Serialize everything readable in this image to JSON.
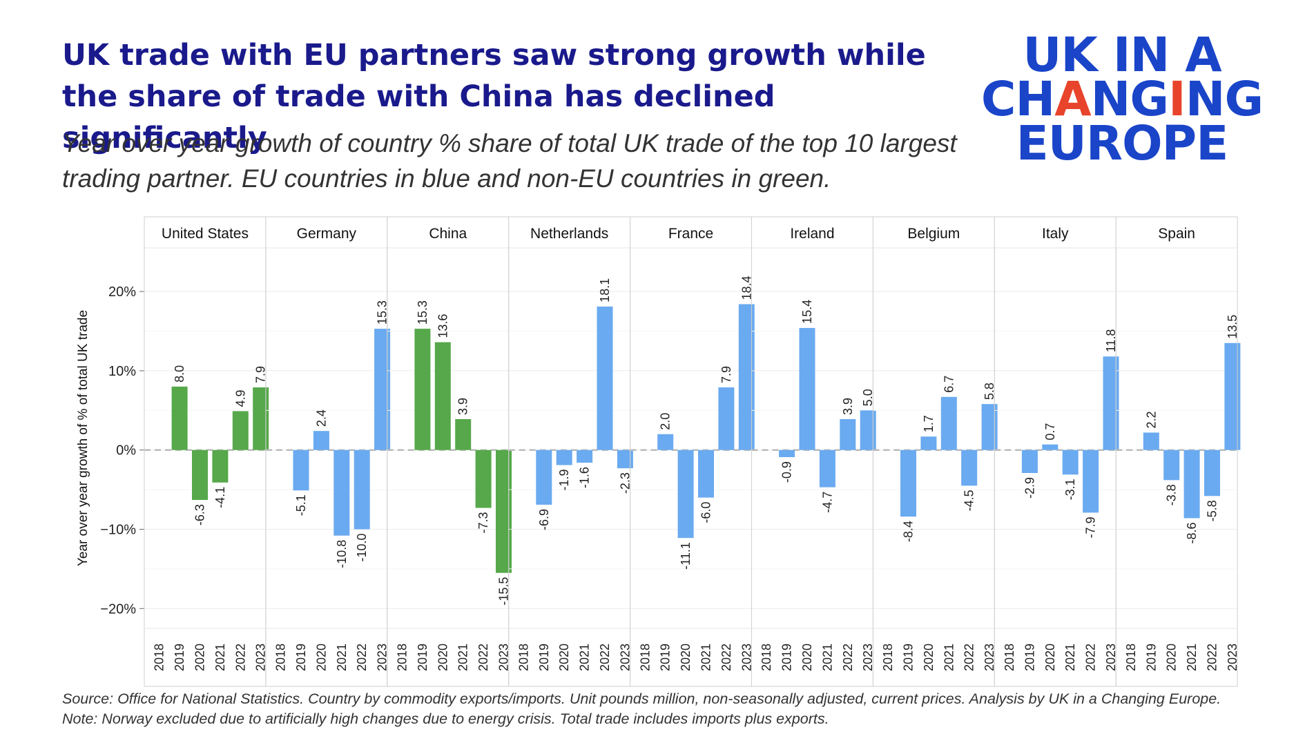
{
  "header": {
    "title": "UK trade with EU partners saw strong growth while the share of trade with China has declined significantly",
    "subtitle": "Year over year growth of country % share of total UK trade of the top 10 largest trading partner. EU countries in blue and non-EU countries in green."
  },
  "logo": {
    "line1": "UK IN A",
    "line2_a": "CH",
    "line2_b": "A",
    "line2_c": "NG",
    "line2_d": "I",
    "line2_e": "NG",
    "line3": "EUROPE",
    "colors": {
      "main": "#1a45c9",
      "accent": "#e8442c"
    }
  },
  "footer": {
    "source": "Source: Office for National Statistics. Country by commodity exports/imports. Unit pounds million, non-seasonally adjusted, current prices.  Analysis by UK in a Changing Europe.",
    "note": "Note: Norway excluded due to artificially high changes due to energy crisis.  Total trade includes imports plus exports."
  },
  "chart_data": {
    "type": "bar",
    "layout": "faceted",
    "ylabel": "Year over year growth of % of total UK trade",
    "xlabel": "",
    "ylim": [
      -22.5,
      25.5
    ],
    "yticks": [
      20,
      10,
      0,
      -10,
      -20
    ],
    "ytick_labels": [
      "20%",
      "10%",
      "0%",
      "−10%",
      "−20%"
    ],
    "categories": [
      "2018",
      "2019",
      "2020",
      "2021",
      "2022",
      "2023"
    ],
    "colors": {
      "eu": "#6aaaf0",
      "non_eu": "#56a84a",
      "zero_line": "#bbbbbb",
      "grid": "#ebebeb",
      "panel_border": "#cfcfcf"
    },
    "series": [
      {
        "name": "United States",
        "group": "non-EU",
        "values": [
          null,
          8.0,
          -6.3,
          -4.1,
          4.9,
          7.9
        ],
        "labels": [
          "",
          "8.0",
          "-6.3",
          "-4.1",
          "4.9",
          "7.9"
        ]
      },
      {
        "name": "Germany",
        "group": "EU",
        "values": [
          null,
          -5.1,
          2.4,
          -10.8,
          -10.0,
          15.3
        ],
        "labels": [
          "",
          "-5.1",
          "2.4",
          "-10.8",
          "-10.0",
          "15.3"
        ]
      },
      {
        "name": "China",
        "group": "non-EU",
        "values": [
          null,
          15.3,
          13.6,
          3.9,
          -7.3,
          -15.5
        ],
        "labels": [
          "",
          "15.3",
          "13.6",
          "3.9",
          "-7.3",
          "-15.5"
        ]
      },
      {
        "name": "Netherlands",
        "group": "EU",
        "values": [
          null,
          -6.9,
          -1.9,
          -1.6,
          18.1,
          -2.3
        ],
        "labels": [
          "",
          "-6.9",
          "-1.9",
          "-1.6",
          "18.1",
          "-2.3"
        ]
      },
      {
        "name": "France",
        "group": "EU",
        "values": [
          null,
          2.0,
          -11.1,
          -6.0,
          7.9,
          18.4
        ],
        "labels": [
          "",
          "2.0",
          "-11.1",
          "-6.0",
          "7.9",
          "18.4"
        ]
      },
      {
        "name": "Ireland",
        "group": "EU",
        "values": [
          null,
          -0.9,
          15.4,
          -4.7,
          3.9,
          5.0
        ],
        "labels": [
          "",
          "-0.9",
          "15.4",
          "-4.7",
          "3.9",
          "5.0"
        ]
      },
      {
        "name": "Belgium",
        "group": "EU",
        "values": [
          null,
          -8.4,
          1.7,
          6.7,
          -4.5,
          5.8
        ],
        "labels": [
          "",
          "-8.4",
          "1.7",
          "6.7",
          "-4.5",
          "5.8"
        ]
      },
      {
        "name": "Italy",
        "group": "EU",
        "values": [
          null,
          -2.9,
          0.7,
          -3.1,
          -7.9,
          11.8
        ],
        "labels": [
          "",
          "-2.9",
          "0.7",
          "-3.1",
          "-7.9",
          "11.8"
        ]
      },
      {
        "name": "Spain",
        "group": "EU",
        "values": [
          null,
          2.2,
          -3.8,
          -8.6,
          -5.8,
          13.5
        ],
        "labels": [
          "",
          "2.2",
          "-3.8",
          "-8.6",
          "-5.8",
          "13.5"
        ]
      }
    ]
  }
}
